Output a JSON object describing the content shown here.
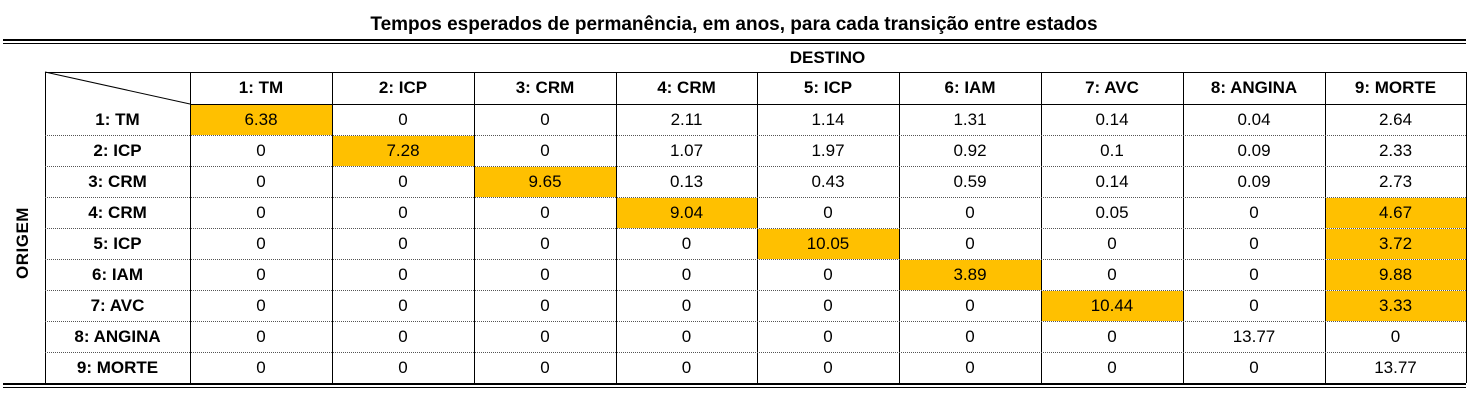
{
  "title": "Tempos esperados de permanência, em anos, para cada transição entre estados",
  "column_group_label": "DESTINO",
  "row_group_label": "ORIGEM",
  "columns": [
    "1: TM",
    "2: ICP",
    "3: CRM",
    "4: CRM",
    "5: ICP",
    "6: IAM",
    "7: AVC",
    "8: ANGINA",
    "9: MORTE"
  ],
  "rows": [
    {
      "label": "1: TM",
      "values": [
        "6.38",
        "0",
        "0",
        "2.11",
        "1.14",
        "1.31",
        "0.14",
        "0.04",
        "2.64"
      ],
      "highlight": [
        0
      ]
    },
    {
      "label": "2: ICP",
      "values": [
        "0",
        "7.28",
        "0",
        "1.07",
        "1.97",
        "0.92",
        "0.1",
        "0.09",
        "2.33"
      ],
      "highlight": [
        1
      ]
    },
    {
      "label": "3: CRM",
      "values": [
        "0",
        "0",
        "9.65",
        "0.13",
        "0.43",
        "0.59",
        "0.14",
        "0.09",
        "2.73"
      ],
      "highlight": [
        2
      ]
    },
    {
      "label": "4: CRM",
      "values": [
        "0",
        "0",
        "0",
        "9.04",
        "0",
        "0",
        "0.05",
        "0",
        "4.67"
      ],
      "highlight": [
        3,
        8
      ]
    },
    {
      "label": "5: ICP",
      "values": [
        "0",
        "0",
        "0",
        "0",
        "10.05",
        "0",
        "0",
        "0",
        "3.72"
      ],
      "highlight": [
        4,
        8
      ]
    },
    {
      "label": "6: IAM",
      "values": [
        "0",
        "0",
        "0",
        "0",
        "0",
        "3.89",
        "0",
        "0",
        "9.88"
      ],
      "highlight": [
        5,
        8
      ]
    },
    {
      "label": "7: AVC",
      "values": [
        "0",
        "0",
        "0",
        "0",
        "0",
        "0",
        "10.44",
        "0",
        "3.33"
      ],
      "highlight": [
        6,
        8
      ]
    },
    {
      "label": "8: ANGINA",
      "values": [
        "0",
        "0",
        "0",
        "0",
        "0",
        "0",
        "0",
        "13.77",
        "0"
      ],
      "highlight": []
    },
    {
      "label": "9: MORTE",
      "values": [
        "0",
        "0",
        "0",
        "0",
        "0",
        "0",
        "0",
        "0",
        "13.77"
      ],
      "highlight": []
    }
  ],
  "highlight_color": "#ffc000"
}
